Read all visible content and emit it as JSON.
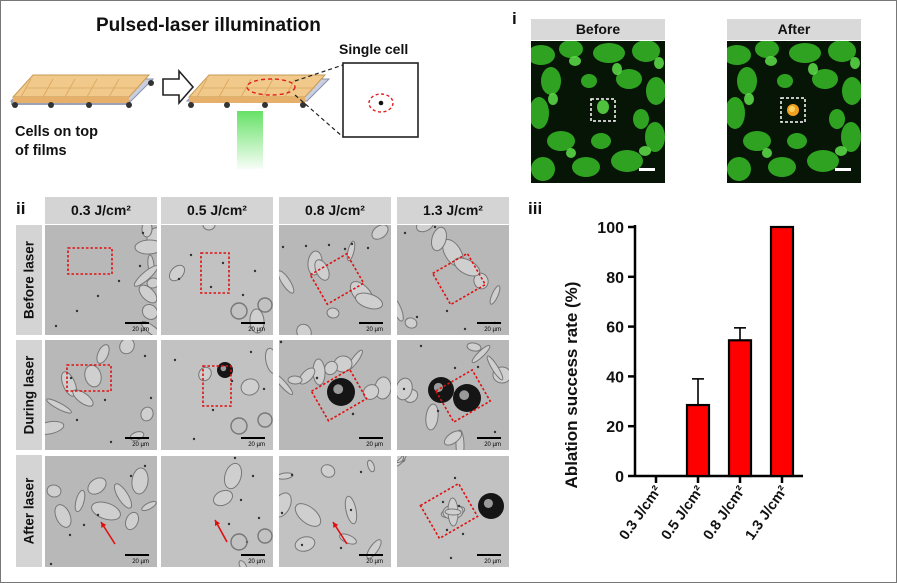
{
  "schematic": {
    "title": "Pulsed-laser illumination",
    "cells_label_line1": "Cells on top",
    "cells_label_line2": "of films",
    "single_cell_label": "Single cell"
  },
  "panel_labels": {
    "i": "i",
    "ii": "ii",
    "iii": "iii"
  },
  "fluorescence": {
    "before_label": "Before",
    "after_label": "After",
    "colors": {
      "cells": "#3fbf2a",
      "ablated": "#f0a020"
    }
  },
  "grid": {
    "columns": [
      "0.3 J/cm²",
      "0.5 J/cm²",
      "0.8 J/cm²",
      "1.3 J/cm²"
    ],
    "rows": [
      "Before laser",
      "During laser",
      "After laser"
    ],
    "scalebar_label": "20 µm"
  },
  "chart_data": {
    "type": "bar",
    "categories": [
      "0.3 J/cm²",
      "0.5 J/cm²",
      "0.8 J/cm²",
      "1.3 J/cm²"
    ],
    "values": [
      0,
      28.5,
      54.5,
      100
    ],
    "errors": [
      0,
      10.5,
      5,
      0
    ],
    "ylabel": "Ablation success rate (%)",
    "ylim": [
      0,
      100
    ],
    "yticks": [
      0,
      20,
      40,
      60,
      80,
      100
    ],
    "bar_color": "#ff0000",
    "grid": false
  }
}
